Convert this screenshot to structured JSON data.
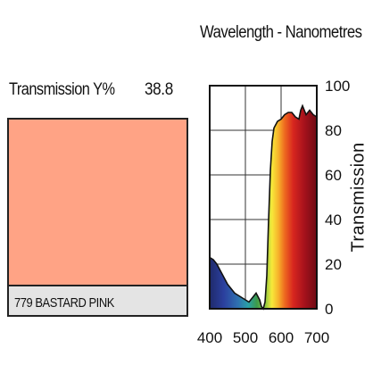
{
  "header": {
    "wavelength_title": "Wavelength - Nanometres",
    "transmission_label": "Transmission Y%",
    "transmission_value": "38.8"
  },
  "filter": {
    "name": "779 BASTARD PINK",
    "swatch_color": "#ffa385",
    "label_bar_color": "#e4e4e4"
  },
  "chart_data": {
    "type": "area",
    "title": "Wavelength - Nanometres",
    "xlabel": "",
    "ylabel": "Transmission",
    "xlim": [
      400,
      700
    ],
    "ylim": [
      0,
      100
    ],
    "x_ticks": [
      400,
      500,
      600,
      700
    ],
    "y_ticks": [
      0,
      20,
      40,
      60,
      80,
      100
    ],
    "grid": true,
    "fill": "visible-spectrum gradient under curve",
    "series": [
      {
        "x": [
          400,
          410,
          420,
          430,
          440,
          450,
          460,
          470,
          480,
          490,
          500,
          510,
          520,
          530,
          540,
          545,
          550,
          555,
          560,
          565,
          570,
          575,
          580,
          590,
          600,
          610,
          620,
          630,
          640,
          650,
          655,
          660,
          665,
          670,
          680,
          690,
          700
        ],
        "y": [
          23,
          22,
          20,
          17,
          14,
          11,
          9,
          7,
          6,
          5,
          4,
          3,
          5,
          7,
          4,
          1,
          0,
          3,
          15,
          40,
          62,
          75,
          81,
          84,
          85,
          87,
          88,
          88,
          86,
          85,
          89,
          91,
          89,
          87,
          89,
          87,
          86
        ]
      }
    ]
  }
}
